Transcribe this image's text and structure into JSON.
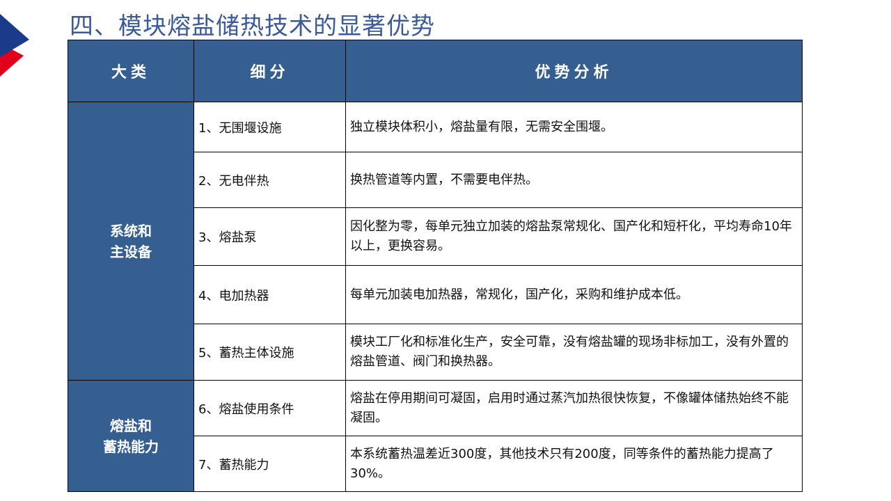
{
  "title": "四、模块熔盐储热技术的显著优势",
  "colors": {
    "header": "#365f91",
    "logo_blue": "#1a3a8a",
    "logo_red": "#e0001b"
  },
  "table": {
    "headers": [
      "大类",
      "细分",
      "优势分析"
    ],
    "groups": [
      {
        "label_lines": [
          "系统和",
          "主设备"
        ]
      },
      {
        "label_lines": [
          "熔盐和",
          "蓄热能力"
        ]
      }
    ],
    "rows": [
      {
        "sub": "1、无围堰设施",
        "desc": "独立模块体积小，熔盐量有限，无需安全围堰。"
      },
      {
        "sub": "2、无电伴热",
        "desc": "换热管道等内置，不需要电伴热。"
      },
      {
        "sub": "3、熔盐泵",
        "desc": "因化整为零，每单元独立加装的熔盐泵常规化、国产化和短杆化，平均寿命10年以上，更换容易。"
      },
      {
        "sub": "4、电加热器",
        "desc": "每单元加装电加热器，常规化，国产化，采购和维护成本低。"
      },
      {
        "sub": "5、蓄热主体设施",
        "desc": "模块工厂化和标准化生产，安全可靠，没有熔盐罐的现场非标加工，没有外置的熔盐管道、阀门和换热器。"
      },
      {
        "sub": "6、熔盐使用条件",
        "desc": "熔盐在停用期间可凝固，启用时通过蒸汽加热很快恢复，不像罐体储热始终不能凝固。"
      },
      {
        "sub": "7、蓄热能力",
        "desc": "本系统蓄热温差近300度，其他技术只有200度，同等条件的蓄热能力提高了30%。"
      }
    ]
  }
}
